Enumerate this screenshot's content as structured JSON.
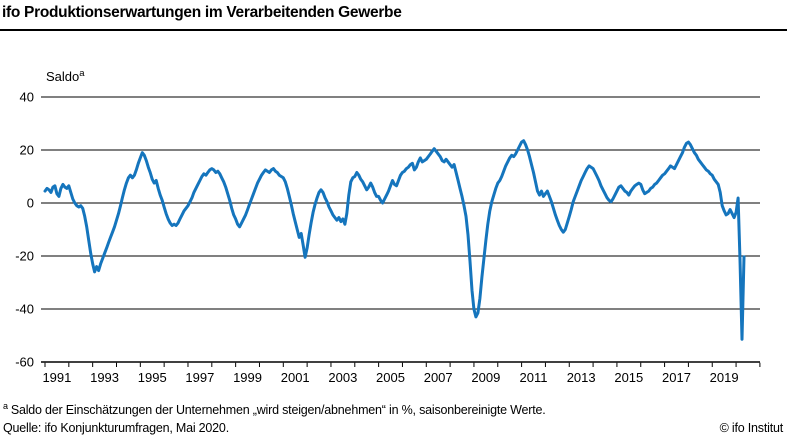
{
  "header": {
    "title": "ifo Produktionserwartungen im Verarbeitenden Gewerbe"
  },
  "chart_data": {
    "type": "line",
    "title": "ifo Produktionserwartungen im Verarbeitenden Gewerbe",
    "unit_label": {
      "text": "Saldo",
      "superscript": "a"
    },
    "xlabel": "",
    "ylabel": "Saldo in %",
    "ylim": [
      -60,
      45
    ],
    "yticks": [
      40,
      20,
      0,
      -20,
      -40,
      -60
    ],
    "x_axis_tick_years_start": 1991,
    "x_axis_tick_years_end": 2021,
    "xtick_labels": [
      "1991",
      "1993",
      "1995",
      "1997",
      "1999",
      "2001",
      "2003",
      "2005",
      "2007",
      "2009",
      "2011",
      "2013",
      "2015",
      "2017",
      "2019"
    ],
    "grid": "horizontal",
    "legend": "none",
    "line_color": "#1575BD",
    "frequency": "monthly",
    "x_start": "1991-01",
    "x_end": "2020-05",
    "monthly_values": {
      "1991": [
        4.5,
        5.5,
        5,
        4,
        6,
        6.5,
        3.5,
        2.5,
        5.5,
        7,
        6,
        5.5
      ],
      "1992": [
        6.5,
        4,
        1.5,
        0,
        -1,
        -1.5,
        -1,
        -2,
        -5,
        -9,
        -14,
        -19
      ],
      "1993": [
        -23,
        -26,
        -24,
        -25.5,
        -23,
        -21,
        -19,
        -17,
        -15,
        -13,
        -11,
        -9
      ],
      "1994": [
        -6.5,
        -4,
        -1,
        2,
        5,
        7.5,
        9.5,
        10.5,
        9.5,
        10.5,
        12.5,
        15
      ],
      "1995": [
        17,
        19,
        18,
        16,
        13.5,
        11.5,
        9,
        7.5,
        8.5,
        5.5,
        3,
        1
      ],
      "1996": [
        -1.5,
        -4,
        -6,
        -7.5,
        -8.5,
        -8,
        -8.5,
        -7.5,
        -6,
        -4.5,
        -3,
        -2
      ],
      "1997": [
        -1,
        0.5,
        2,
        4,
        5.5,
        7,
        8.5,
        10,
        11,
        10.5,
        11.5,
        12.5
      ],
      "1998": [
        13,
        12.5,
        11.5,
        12,
        11,
        9.5,
        8,
        6,
        3.5,
        1,
        -2,
        -4.5
      ],
      "1999": [
        -6,
        -8,
        -9,
        -7.5,
        -6,
        -4.5,
        -2.5,
        -0.5,
        1.5,
        3.5,
        5.5,
        7.5
      ],
      "2000": [
        9,
        10.5,
        11.5,
        12.5,
        12,
        11.5,
        12.5,
        13,
        12,
        11.5,
        10.5,
        10
      ],
      "2001": [
        9.5,
        8,
        5.5,
        2.5,
        -0.5,
        -4,
        -7,
        -10,
        -13,
        -11.5,
        -16,
        -20.5
      ],
      "2002": [
        -17,
        -12,
        -7.5,
        -3.5,
        -0.5,
        2,
        4,
        5,
        4,
        2,
        0.5,
        -1.5
      ],
      "2003": [
        -3,
        -4.5,
        -5.5,
        -6.5,
        -5.5,
        -7,
        -6,
        -8,
        -4,
        3,
        8,
        9.5
      ],
      "2004": [
        10,
        11.5,
        10.5,
        9,
        8,
        6.5,
        5,
        6,
        7.5,
        6,
        4,
        2.5
      ],
      "2005": [
        2.5,
        1,
        0,
        1.5,
        3,
        4.5,
        6.5,
        8.5,
        7,
        6.5,
        8.5,
        10.5
      ],
      "2006": [
        11.5,
        12,
        13,
        13.5,
        14.5,
        15,
        12.5,
        13.5,
        15.5,
        17,
        15.5,
        16
      ],
      "2007": [
        16.5,
        17.5,
        18.5,
        19.5,
        20.5,
        19.5,
        18.5,
        17.5,
        16,
        15.5,
        16.5,
        15.5
      ],
      "2008": [
        14.5,
        13.5,
        14.5,
        11.5,
        8.5,
        5.5,
        2.5,
        -1,
        -5,
        -12,
        -22,
        -33
      ],
      "2009": [
        -40,
        -43,
        -41.5,
        -36,
        -28,
        -21,
        -14,
        -8,
        -3,
        0.5,
        3,
        5.5
      ],
      "2010": [
        7.5,
        8.5,
        10,
        12,
        14,
        15.5,
        17,
        18,
        17.5,
        18.5,
        20,
        21.5
      ],
      "2011": [
        23,
        23.5,
        22,
        20,
        17.5,
        14.5,
        11.5,
        8,
        4.5,
        3,
        4.5,
        2.5
      ],
      "2012": [
        3.5,
        4.5,
        2.5,
        0.5,
        -2,
        -4.5,
        -6.5,
        -8.5,
        -10,
        -11,
        -10,
        -7.5
      ],
      "2013": [
        -5,
        -2.5,
        0.5,
        2.5,
        4.5,
        6.5,
        8.5,
        10,
        11.5,
        13,
        14,
        13.5
      ],
      "2014": [
        13,
        11.5,
        10,
        8.5,
        6.5,
        5,
        3.5,
        2,
        1,
        0.5,
        1.5,
        3
      ],
      "2015": [
        4.5,
        6,
        6.5,
        5.5,
        4.5,
        4,
        3,
        4.5,
        5.5,
        6.5,
        7,
        7.5
      ],
      "2016": [
        7,
        5,
        3.5,
        4,
        4.5,
        5.5,
        6,
        7,
        7.5,
        8.5,
        9.5,
        10.5
      ],
      "2017": [
        11,
        12,
        13,
        14,
        13.5,
        13,
        14.5,
        16,
        17.5,
        19,
        21,
        22.5
      ],
      "2018": [
        23,
        22,
        20.5,
        19,
        18,
        16.5,
        15.5,
        14.5,
        13.5,
        12.5,
        12,
        11
      ],
      "2019": [
        10.5,
        9,
        8,
        7,
        4,
        -1,
        -3,
        -4.5,
        -4,
        -2.5,
        -4,
        -5.5
      ],
      "2020": [
        -3.5,
        1.9,
        -21.4,
        -51.4,
        -20.3
      ]
    }
  },
  "footer": {
    "footnote_superscript": "a",
    "footnote_text": "Saldo der Einschätzungen der Unternehmen „wird steigen/abnehmen“ in %, saisonbereinigte Werte.",
    "source": "Quelle: ifo Konjunkturumfragen, Mai 2020.",
    "copyright": "© ifo Institut"
  }
}
